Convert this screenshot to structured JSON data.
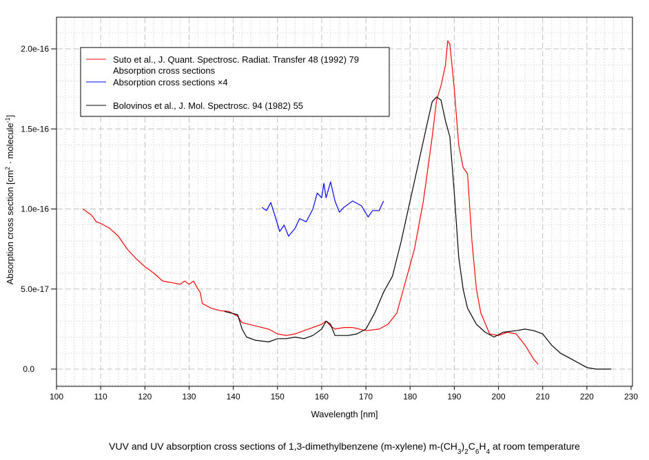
{
  "chart_data": {
    "type": "line",
    "title": "VUV and UV absorption cross sections of 1,3-dimethylbenzene (m-xylene) m-(CH3)2C6H4 at room temperature",
    "title_parts": {
      "pre": "VUV and UV absorption cross sections of 1,3-dimethylbenzene (m-xylene) m-(CH",
      "s1": "3",
      "mid1": ")",
      "s2": "2",
      "mid2": "C",
      "s3": "6",
      "mid3": "H",
      "s4": "4",
      "post": " at room temperature"
    },
    "xlabel": "Wavelength [nm]",
    "ylabel": "Absorption cross section [cm2 · molecule-1]",
    "ylabel_parts": {
      "pre": "Absorption cross section [cm",
      "sup1": "2",
      "mid": " · molecule",
      "sup2": "-1",
      "post": "]"
    },
    "xlim": [
      100,
      230
    ],
    "ylim": [
      -1e-17,
      2.2e-16
    ],
    "xticks": [
      100,
      110,
      120,
      130,
      140,
      150,
      160,
      170,
      180,
      190,
      200,
      210,
      220,
      230
    ],
    "yticks": [
      {
        "v": 0,
        "label": "0.0"
      },
      {
        "v": 5e-17,
        "label": "5.0e-17"
      },
      {
        "v": 1e-16,
        "label": "1.0e-16"
      },
      {
        "v": 1.5e-16,
        "label": "1.5e-16"
      },
      {
        "v": 2e-16,
        "label": "2.0e-16"
      }
    ],
    "grid": true,
    "legend_placement": "top-left",
    "legend": [
      {
        "label": "Suto et al., J. Quant. Spectrosc. Radiat. Transfer 48 (1992) 79",
        "color": "#ff0000"
      },
      {
        "label": "Absorption cross sections",
        "color": null
      },
      {
        "label": "Absorption cross sections ×4",
        "color": "#0000ff"
      },
      {
        "label": "Bolovinos et al., J. Mol. Spectrosc. 94 (1982) 55",
        "color": "#000000"
      }
    ],
    "y_unit_scale": 1e-16,
    "series": [
      {
        "name": "Suto et al. absorption cross sections",
        "color": "#ff0000",
        "x": [
          106,
          108,
          109,
          110,
          112,
          114,
          116,
          118,
          120,
          122,
          124,
          126,
          128,
          129,
          130,
          131,
          132,
          132.5,
          133,
          135,
          137,
          139,
          141,
          142,
          145,
          148,
          150,
          152,
          154,
          156,
          158,
          160,
          161,
          162,
          163,
          165,
          167,
          170,
          173,
          175,
          177,
          179,
          181,
          183,
          185,
          186,
          187,
          188,
          188.5,
          189,
          190,
          191,
          192,
          193,
          194,
          195,
          196,
          198,
          200,
          202,
          204,
          206,
          208,
          209
        ],
        "y": [
          1.0,
          0.96,
          0.92,
          0.91,
          0.88,
          0.83,
          0.75,
          0.69,
          0.64,
          0.6,
          0.55,
          0.54,
          0.53,
          0.55,
          0.53,
          0.55,
          0.5,
          0.48,
          0.41,
          0.38,
          0.365,
          0.36,
          0.33,
          0.29,
          0.27,
          0.25,
          0.22,
          0.21,
          0.22,
          0.24,
          0.26,
          0.28,
          0.3,
          0.27,
          0.25,
          0.26,
          0.26,
          0.24,
          0.25,
          0.28,
          0.35,
          0.55,
          0.75,
          1.05,
          1.45,
          1.68,
          1.77,
          1.9,
          2.05,
          2.03,
          1.75,
          1.4,
          1.26,
          1.22,
          0.8,
          0.5,
          0.35,
          0.22,
          0.21,
          0.23,
          0.22,
          0.15,
          0.06,
          0.03
        ]
      },
      {
        "name": "Absorption cross sections x4",
        "color": "#0000ff",
        "x": [
          146.5,
          147.5,
          148.5,
          149.5,
          150.5,
          151.5,
          152.5,
          154,
          155,
          156.5,
          158,
          159,
          160,
          160.5,
          161,
          162,
          163,
          164,
          165,
          167,
          169,
          170.5,
          171.5,
          173,
          174
        ],
        "y": [
          1.01,
          0.99,
          1.04,
          0.95,
          0.86,
          0.9,
          0.83,
          0.88,
          0.94,
          0.92,
          1.0,
          1.1,
          1.07,
          1.16,
          1.07,
          1.17,
          1.05,
          0.98,
          1.01,
          1.05,
          1.02,
          0.95,
          0.99,
          0.99,
          1.05
        ]
      },
      {
        "name": "Bolovinos et al.",
        "color": "#000000",
        "x": [
          138,
          141,
          142,
          143,
          145,
          148,
          150,
          152,
          154,
          156,
          158,
          160,
          161,
          162,
          163,
          166,
          168,
          170,
          172,
          174,
          176,
          178,
          180,
          182,
          184,
          185,
          186,
          187,
          188,
          189,
          190,
          191,
          192,
          193,
          195,
          197,
          199,
          201,
          204,
          206,
          208,
          210,
          212,
          214,
          216,
          218,
          220,
          222,
          225.5
        ],
        "y": [
          0.36,
          0.34,
          0.25,
          0.2,
          0.18,
          0.17,
          0.19,
          0.19,
          0.2,
          0.19,
          0.21,
          0.25,
          0.3,
          0.28,
          0.21,
          0.21,
          0.22,
          0.25,
          0.35,
          0.48,
          0.58,
          0.8,
          1.05,
          1.3,
          1.55,
          1.67,
          1.7,
          1.68,
          1.55,
          1.45,
          1.1,
          0.7,
          0.5,
          0.38,
          0.28,
          0.23,
          0.2,
          0.23,
          0.24,
          0.25,
          0.24,
          0.22,
          0.15,
          0.1,
          0.07,
          0.04,
          0.01,
          0.0,
          0.0
        ]
      }
    ]
  }
}
